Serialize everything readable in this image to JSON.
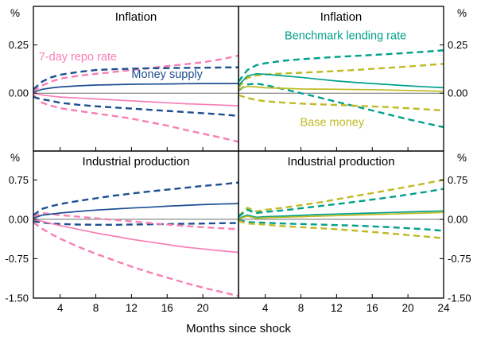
{
  "figure": {
    "xlabel": "Months since shock",
    "unit": "%",
    "colors": {
      "pink": "#f77fb4",
      "blue": "#1d4f91",
      "teal": "#00a08b",
      "olive": "#c0ba22",
      "axis": "#000000",
      "zero_line": "#6b6b6b",
      "background": "#ffffff"
    },
    "x_axis": {
      "min": 1,
      "max": 24,
      "ticks_left": [
        4,
        8,
        12,
        16,
        20
      ],
      "ticks_right": [
        4,
        8,
        12,
        16,
        20,
        24
      ]
    }
  },
  "chart_data": [
    {
      "type": "line",
      "title": "Inflation",
      "row": 0,
      "col": 0,
      "ylim": [
        -0.3,
        0.45
      ],
      "yticks": [
        {
          "value": 0.25,
          "label": "0.25"
        },
        {
          "value": 0.0,
          "label": "0.00"
        }
      ],
      "x": [
        1,
        2,
        3,
        4,
        6,
        8,
        10,
        12,
        14,
        16,
        18,
        20,
        22,
        24
      ],
      "series": [
        {
          "name": "7-day repo rate",
          "band": "upper",
          "color": "pink",
          "dashed": true,
          "values": [
            0.01,
            0.04,
            0.06,
            0.075,
            0.09,
            0.1,
            0.11,
            0.12,
            0.13,
            0.14,
            0.15,
            0.16,
            0.175,
            0.195
          ]
        },
        {
          "name": "7-day repo rate",
          "band": "lower",
          "color": "pink",
          "dashed": true,
          "values": [
            -0.01,
            -0.05,
            -0.065,
            -0.078,
            -0.092,
            -0.105,
            -0.118,
            -0.132,
            -0.15,
            -0.168,
            -0.19,
            -0.21,
            -0.23,
            -0.252
          ]
        },
        {
          "name": "Money supply",
          "band": "upper",
          "color": "blue",
          "dashed": true,
          "values": [
            0.02,
            0.06,
            0.082,
            0.095,
            0.11,
            0.12,
            0.124,
            0.127,
            0.129,
            0.13,
            0.131,
            0.132,
            0.133,
            0.134
          ]
        },
        {
          "name": "Money supply",
          "band": "lower",
          "color": "blue",
          "dashed": true,
          "values": [
            -0.02,
            -0.032,
            -0.04,
            -0.05,
            -0.06,
            -0.068,
            -0.074,
            -0.08,
            -0.086,
            -0.092,
            -0.098,
            -0.104,
            -0.11,
            -0.118
          ]
        },
        {
          "name": "7-day repo rate",
          "band": "mean",
          "color": "pink",
          "dashed": false,
          "values": [
            0.0,
            -0.01,
            -0.015,
            -0.02,
            -0.025,
            -0.03,
            -0.035,
            -0.04,
            -0.045,
            -0.05,
            -0.055,
            -0.058,
            -0.062,
            -0.065
          ]
        },
        {
          "name": "Money supply",
          "band": "mean",
          "color": "blue",
          "dashed": false,
          "values": [
            0.005,
            0.02,
            0.027,
            0.032,
            0.038,
            0.042,
            0.044,
            0.046,
            0.047,
            0.048,
            0.049,
            0.05,
            0.05,
            0.05
          ]
        }
      ],
      "annotations": [
        {
          "text": "7-day repo rate",
          "color": "pink",
          "x": 1.6,
          "y": 0.17,
          "anchor": "start"
        },
        {
          "text": "Money supply",
          "color": "blue",
          "x": 12,
          "y": 0.08,
          "anchor": "start"
        }
      ]
    },
    {
      "type": "line",
      "title": "Inflation",
      "row": 0,
      "col": 1,
      "ylim": [
        -0.3,
        0.45
      ],
      "yticks": [
        {
          "value": 0.25,
          "label": "0.25"
        },
        {
          "value": 0.0,
          "label": "0.00"
        }
      ],
      "x": [
        1,
        2,
        3,
        4,
        6,
        8,
        10,
        12,
        14,
        16,
        18,
        20,
        22,
        24
      ],
      "series": [
        {
          "name": "Benchmark lending rate",
          "band": "upper",
          "color": "teal",
          "dashed": true,
          "values": [
            0.06,
            0.12,
            0.145,
            0.155,
            0.168,
            0.176,
            0.182,
            0.188,
            0.193,
            0.198,
            0.203,
            0.209,
            0.215,
            0.222
          ]
        },
        {
          "name": "Benchmark lending rate",
          "band": "lower",
          "color": "teal",
          "dashed": true,
          "values": [
            0.015,
            0.045,
            0.05,
            0.042,
            0.022,
            0.0,
            -0.022,
            -0.045,
            -0.067,
            -0.09,
            -0.113,
            -0.135,
            -0.156,
            -0.176
          ]
        },
        {
          "name": "Base money",
          "band": "upper",
          "color": "olive",
          "dashed": true,
          "values": [
            0.03,
            0.08,
            0.092,
            0.097,
            0.102,
            0.106,
            0.11,
            0.115,
            0.12,
            0.126,
            0.132,
            0.138,
            0.145,
            0.152
          ]
        },
        {
          "name": "Base money",
          "band": "lower",
          "color": "olive",
          "dashed": true,
          "values": [
            -0.01,
            -0.025,
            -0.035,
            -0.042,
            -0.049,
            -0.054,
            -0.058,
            -0.061,
            -0.065,
            -0.069,
            -0.073,
            -0.078,
            -0.084,
            -0.09
          ]
        },
        {
          "name": "Benchmark lending rate",
          "band": "mean",
          "color": "teal",
          "dashed": false,
          "values": [
            0.04,
            0.09,
            0.1,
            0.098,
            0.09,
            0.082,
            0.072,
            0.063,
            0.056,
            0.05,
            0.044,
            0.038,
            0.033,
            0.028
          ]
        },
        {
          "name": "Base money",
          "band": "mean",
          "color": "olive",
          "dashed": false,
          "values": [
            0.02,
            0.035,
            0.032,
            0.028,
            0.025,
            0.022,
            0.021,
            0.02,
            0.019,
            0.018,
            0.016,
            0.014,
            0.012,
            0.01
          ]
        }
      ],
      "annotations": [
        {
          "text": "Benchmark lending rate",
          "color": "teal",
          "x": 13,
          "y": 0.28,
          "anchor": "middle"
        },
        {
          "text": "Base money",
          "color": "olive",
          "x": 11.5,
          "y": -0.17,
          "anchor": "middle"
        }
      ]
    },
    {
      "type": "line",
      "title": "Industrial production",
      "row": 1,
      "col": 0,
      "ylim": [
        -1.5,
        1.3
      ],
      "yticks": [
        {
          "value": 0.75,
          "label": "0.75"
        },
        {
          "value": 0.0,
          "label": "0.00"
        },
        {
          "value": -0.75,
          "label": "-0.75"
        },
        {
          "value": -1.5,
          "label": "-1.50"
        }
      ],
      "x": [
        1,
        2,
        3,
        4,
        6,
        8,
        10,
        12,
        14,
        16,
        18,
        20,
        22,
        24
      ],
      "series": [
        {
          "name": "Money supply",
          "band": "upper",
          "color": "blue",
          "dashed": true,
          "values": [
            0.08,
            0.2,
            0.25,
            0.29,
            0.35,
            0.4,
            0.45,
            0.49,
            0.53,
            0.565,
            0.6,
            0.635,
            0.665,
            0.7
          ]
        },
        {
          "name": "Money supply",
          "band": "lower",
          "color": "blue",
          "dashed": true,
          "values": [
            -0.04,
            -0.06,
            -0.08,
            -0.09,
            -0.1,
            -0.105,
            -0.105,
            -0.1,
            -0.095,
            -0.09,
            -0.085,
            -0.08,
            -0.075,
            -0.07
          ]
        },
        {
          "name": "7-day repo rate",
          "band": "upper",
          "color": "pink",
          "dashed": true,
          "values": [
            0.05,
            0.12,
            0.1,
            0.08,
            0.05,
            0.02,
            -0.01,
            -0.04,
            -0.07,
            -0.1,
            -0.125,
            -0.15,
            -0.17,
            -0.19
          ]
        },
        {
          "name": "7-day repo rate",
          "band": "lower",
          "color": "pink",
          "dashed": true,
          "values": [
            -0.06,
            -0.18,
            -0.28,
            -0.37,
            -0.52,
            -0.655,
            -0.78,
            -0.9,
            -1.01,
            -1.11,
            -1.21,
            -1.3,
            -1.38,
            -1.46
          ]
        },
        {
          "name": "Money supply",
          "band": "mean",
          "color": "blue",
          "dashed": false,
          "values": [
            0.02,
            0.08,
            0.1,
            0.12,
            0.15,
            0.175,
            0.195,
            0.215,
            0.23,
            0.25,
            0.265,
            0.28,
            0.29,
            0.3
          ]
        },
        {
          "name": "7-day repo rate",
          "band": "mean",
          "color": "pink",
          "dashed": false,
          "values": [
            0.0,
            -0.04,
            -0.08,
            -0.12,
            -0.19,
            -0.26,
            -0.32,
            -0.38,
            -0.43,
            -0.48,
            -0.53,
            -0.565,
            -0.6,
            -0.63
          ]
        }
      ],
      "annotations": []
    },
    {
      "type": "line",
      "title": "Industrial production",
      "row": 1,
      "col": 1,
      "ylim": [
        -1.5,
        1.3
      ],
      "yticks": [
        {
          "value": 0.75,
          "label": "0.75"
        },
        {
          "value": 0.0,
          "label": "0.00"
        },
        {
          "value": -0.75,
          "label": "-0.75"
        },
        {
          "value": -1.5,
          "label": "-1.50"
        }
      ],
      "x": [
        1,
        2,
        3,
        4,
        6,
        8,
        10,
        12,
        14,
        16,
        18,
        20,
        22,
        24
      ],
      "series": [
        {
          "name": "Base money",
          "band": "upper",
          "color": "olive",
          "dashed": true,
          "values": [
            0.06,
            0.22,
            0.15,
            0.18,
            0.22,
            0.27,
            0.32,
            0.38,
            0.44,
            0.5,
            0.56,
            0.62,
            0.685,
            0.75
          ]
        },
        {
          "name": "Benchmark lending rate",
          "band": "upper",
          "color": "teal",
          "dashed": true,
          "values": [
            0.05,
            0.18,
            0.12,
            0.14,
            0.17,
            0.21,
            0.25,
            0.29,
            0.33,
            0.375,
            0.42,
            0.47,
            0.52,
            0.58
          ]
        },
        {
          "name": "Benchmark lending rate",
          "band": "lower",
          "color": "teal",
          "dashed": true,
          "values": [
            -0.02,
            -0.05,
            -0.06,
            -0.065,
            -0.08,
            -0.09,
            -0.1,
            -0.11,
            -0.12,
            -0.135,
            -0.15,
            -0.17,
            -0.19,
            -0.22
          ]
        },
        {
          "name": "Base money",
          "band": "lower",
          "color": "olive",
          "dashed": true,
          "values": [
            -0.03,
            -0.08,
            -0.09,
            -0.1,
            -0.13,
            -0.15,
            -0.17,
            -0.19,
            -0.215,
            -0.24,
            -0.27,
            -0.3,
            -0.33,
            -0.36
          ]
        },
        {
          "name": "Benchmark lending rate",
          "band": "mean",
          "color": "teal",
          "dashed": false,
          "values": [
            0.02,
            0.08,
            0.04,
            0.05,
            0.06,
            0.075,
            0.09,
            0.1,
            0.11,
            0.12,
            0.13,
            0.14,
            0.15,
            0.16
          ]
        },
        {
          "name": "Base money",
          "band": "mean",
          "color": "olive",
          "dashed": false,
          "values": [
            0.01,
            0.06,
            0.02,
            0.03,
            0.04,
            0.05,
            0.06,
            0.07,
            0.08,
            0.09,
            0.1,
            0.11,
            0.12,
            0.13
          ]
        }
      ],
      "annotations": []
    }
  ]
}
